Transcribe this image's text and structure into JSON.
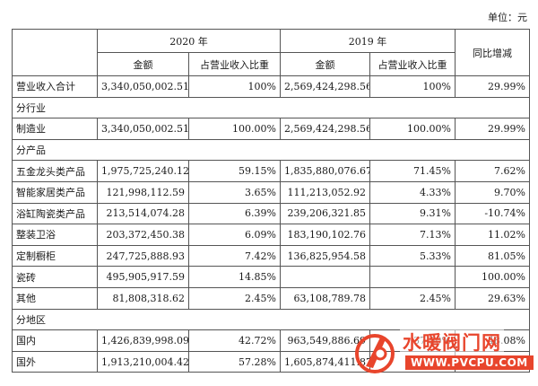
{
  "unit_label": "单位：元",
  "header": {
    "year_2020": "2020 年",
    "year_2019": "2019 年",
    "yoy": "同比增减",
    "amount": "金额",
    "share": "占营业收入比重"
  },
  "rows": [
    {
      "type": "data",
      "label": "营业收入合计",
      "a2020": "3,340,050,002.51",
      "s2020": "100%",
      "a2019": "2,569,424,298.56",
      "s2019": "100%",
      "yoy": "29.99%"
    },
    {
      "type": "section",
      "label": "分行业"
    },
    {
      "type": "data",
      "label": "制造业",
      "a2020": "3,340,050,002.51",
      "s2020": "100.00%",
      "a2019": "2,569,424,298.56",
      "s2019": "100.00%",
      "yoy": "29.99%"
    },
    {
      "type": "section",
      "label": "分产品"
    },
    {
      "type": "data",
      "label": "五金龙头类产品",
      "a2020": "1,975,725,240.12",
      "s2020": "59.15%",
      "a2019": "1,835,880,076.67",
      "s2019": "71.45%",
      "yoy": "7.62%"
    },
    {
      "type": "data",
      "label": "智能家居类产品",
      "a2020": "121,998,112.59",
      "s2020": "3.65%",
      "a2019": "111,213,052.92",
      "s2019": "4.33%",
      "yoy": "9.70%"
    },
    {
      "type": "data",
      "label": "浴缸陶瓷类产品",
      "a2020": "213,514,074.28",
      "s2020": "6.39%",
      "a2019": "239,206,321.85",
      "s2019": "9.31%",
      "yoy": "-10.74%"
    },
    {
      "type": "data",
      "label": "整装卫浴",
      "a2020": "203,372,450.38",
      "s2020": "6.09%",
      "a2019": "183,190,102.76",
      "s2019": "7.13%",
      "yoy": "11.02%"
    },
    {
      "type": "data",
      "label": "定制橱柜",
      "a2020": "247,725,888.93",
      "s2020": "7.42%",
      "a2019": "136,825,954.58",
      "s2019": "5.33%",
      "yoy": "81.05%"
    },
    {
      "type": "data",
      "label": "瓷砖",
      "a2020": "495,905,917.59",
      "s2020": "14.85%",
      "a2019": "",
      "s2019": "",
      "yoy": "100.00%"
    },
    {
      "type": "data",
      "label": "其他",
      "a2020": "81,808,318.62",
      "s2020": "2.45%",
      "a2019": "63,108,789.78",
      "s2019": "2.45%",
      "yoy": "29.63%"
    },
    {
      "type": "section",
      "label": "分地区"
    },
    {
      "type": "data",
      "label": "国内",
      "a2020": "1,426,839,998.09",
      "s2020": "42.72%",
      "a2019": "963,549,886.69",
      "s2019": "37.50%",
      "yoy": "48.08%"
    },
    {
      "type": "data",
      "label": "国外",
      "a2020": "1,913,210,004.42",
      "s2020": "57.28%",
      "a2019": "1,605,874,411.87",
      "s2019": "62.50%",
      "yoy": "19.14%"
    }
  ],
  "watermark": {
    "title": "水暖阀门网",
    "url": "WWW.PVCPU.COM",
    "color": "#e8452c"
  }
}
